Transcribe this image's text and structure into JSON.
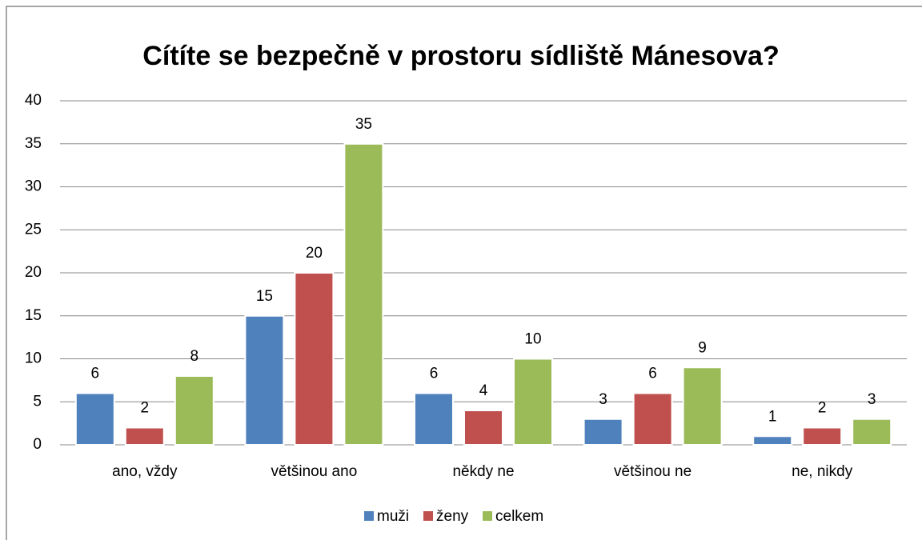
{
  "chart_data": {
    "type": "bar",
    "title": "Cítíte se bezpečně v prostoru sídliště Mánesova?",
    "categories": [
      "ano, vždy",
      "většinou ano",
      "někdy ne",
      "většinou ne",
      "ne, nikdy"
    ],
    "series": [
      {
        "name": "muži",
        "color": "#4f81bd",
        "values": [
          6,
          15,
          6,
          3,
          1
        ]
      },
      {
        "name": "ženy",
        "color": "#c0504d",
        "values": [
          2,
          20,
          4,
          6,
          2
        ]
      },
      {
        "name": "celkem",
        "color": "#9bbb59",
        "values": [
          8,
          35,
          10,
          9,
          3
        ]
      }
    ],
    "ylim": [
      0,
      40
    ],
    "yticks": [
      0,
      5,
      10,
      15,
      20,
      25,
      30,
      35,
      40
    ],
    "grid": true,
    "legend": "bottom"
  }
}
